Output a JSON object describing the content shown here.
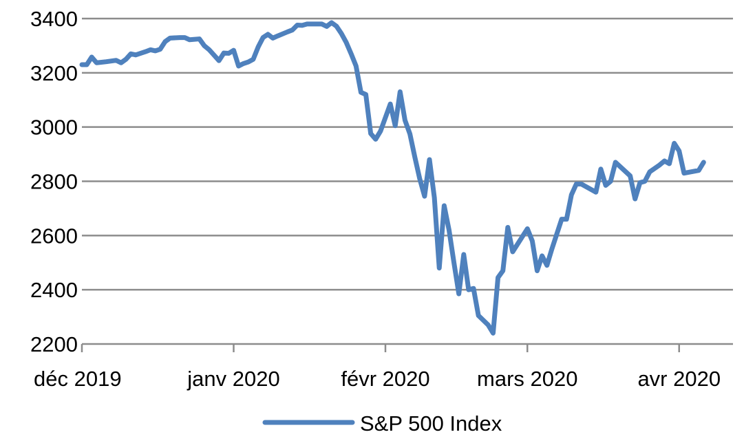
{
  "chart_data": {
    "type": "line",
    "title": "",
    "xlabel": "",
    "ylabel": "",
    "ylim": [
      2200,
      3400
    ],
    "yticks": [
      2200,
      2400,
      2600,
      2800,
      3000,
      3200,
      3400
    ],
    "ytick_labels": [
      "2200",
      "2400",
      "2600",
      "2800",
      "3000",
      "3200",
      "3400"
    ],
    "xlim": [
      "2019-12-01",
      "2020-04-12"
    ],
    "xticks": [
      {
        "date": "2019-12-01",
        "label": "déc 2019"
      },
      {
        "date": "2020-01-01",
        "label": "janv 2020"
      },
      {
        "date": "2020-02-01",
        "label": "févr 2020"
      },
      {
        "date": "2020-03-01",
        "label": "mars 2020"
      },
      {
        "date": "2020-04-01",
        "label": "avr 2020"
      }
    ],
    "grid": true,
    "legend_position": "bottom-center",
    "series": [
      {
        "name": "S&P 500 Index",
        "color": "#4f81bd",
        "points": [
          [
            "2019-12-01",
            3230
          ],
          [
            "2019-12-02",
            3230
          ],
          [
            "2019-12-03",
            3258
          ],
          [
            "2019-12-04",
            3237
          ],
          [
            "2019-12-06",
            3241
          ],
          [
            "2019-12-08",
            3246
          ],
          [
            "2019-12-09",
            3237
          ],
          [
            "2019-12-10",
            3250
          ],
          [
            "2019-12-11",
            3270
          ],
          [
            "2019-12-12",
            3266
          ],
          [
            "2019-12-14",
            3278
          ],
          [
            "2019-12-15",
            3285
          ],
          [
            "2019-12-16",
            3281
          ],
          [
            "2019-12-17",
            3287
          ],
          [
            "2019-12-18",
            3315
          ],
          [
            "2019-12-19",
            3328
          ],
          [
            "2019-12-21",
            3330
          ],
          [
            "2019-12-22",
            3330
          ],
          [
            "2019-12-23",
            3322
          ],
          [
            "2019-12-25",
            3325
          ],
          [
            "2019-12-26",
            3300
          ],
          [
            "2019-12-27",
            3285
          ],
          [
            "2019-12-28",
            3265
          ],
          [
            "2019-12-29",
            3245
          ],
          [
            "2019-12-30",
            3273
          ],
          [
            "2019-12-31",
            3272
          ],
          [
            "2020-01-01",
            3283
          ],
          [
            "2020-01-02",
            3225
          ],
          [
            "2020-01-03",
            3234
          ],
          [
            "2020-01-04",
            3240
          ],
          [
            "2020-01-05",
            3250
          ],
          [
            "2020-01-06",
            3295
          ],
          [
            "2020-01-07",
            3330
          ],
          [
            "2020-01-08",
            3342
          ],
          [
            "2020-01-09",
            3328
          ],
          [
            "2020-01-10",
            3336
          ],
          [
            "2020-01-12",
            3351
          ],
          [
            "2020-01-13",
            3358
          ],
          [
            "2020-01-14",
            3376
          ],
          [
            "2020-01-15",
            3375
          ],
          [
            "2020-01-16",
            3380
          ],
          [
            "2020-01-17",
            3380
          ],
          [
            "2020-01-19",
            3380
          ],
          [
            "2020-01-20",
            3371
          ],
          [
            "2020-01-21",
            3385
          ],
          [
            "2020-01-22",
            3372
          ],
          [
            "2020-01-23",
            3345
          ],
          [
            "2020-01-24",
            3312
          ],
          [
            "2020-01-25",
            3270
          ],
          [
            "2020-01-26",
            3225
          ],
          [
            "2020-01-27",
            3128
          ],
          [
            "2020-01-28",
            3120
          ],
          [
            "2020-01-29",
            2976
          ],
          [
            "2020-01-30",
            2955
          ],
          [
            "2020-01-31",
            2985
          ],
          [
            "2020-02-02",
            3085
          ],
          [
            "2020-02-03",
            3005
          ],
          [
            "2020-02-04",
            3130
          ],
          [
            "2020-02-05",
            3025
          ],
          [
            "2020-02-06",
            2975
          ],
          [
            "2020-02-07",
            2890
          ],
          [
            "2020-02-08",
            2810
          ],
          [
            "2020-02-09",
            2745
          ],
          [
            "2020-02-10",
            2880
          ],
          [
            "2020-02-11",
            2740
          ],
          [
            "2020-02-12",
            2480
          ],
          [
            "2020-02-13",
            2710
          ],
          [
            "2020-02-14",
            2620
          ],
          [
            "2020-02-15",
            2500
          ],
          [
            "2020-02-16",
            2385
          ],
          [
            "2020-02-17",
            2530
          ],
          [
            "2020-02-18",
            2400
          ],
          [
            "2020-02-19",
            2405
          ],
          [
            "2020-02-20",
            2305
          ],
          [
            "2020-02-22",
            2270
          ],
          [
            "2020-02-23",
            2240
          ],
          [
            "2020-02-24",
            2445
          ],
          [
            "2020-02-25",
            2470
          ],
          [
            "2020-02-26",
            2630
          ],
          [
            "2020-02-27",
            2540
          ],
          [
            "2020-03-01",
            2625
          ],
          [
            "2020-03-02",
            2580
          ],
          [
            "2020-03-03",
            2470
          ],
          [
            "2020-03-04",
            2525
          ],
          [
            "2020-03-05",
            2490
          ],
          [
            "2020-03-06",
            2550
          ],
          [
            "2020-03-07",
            2605
          ],
          [
            "2020-03-08",
            2660
          ],
          [
            "2020-03-09",
            2660
          ],
          [
            "2020-03-10",
            2750
          ],
          [
            "2020-03-11",
            2790
          ],
          [
            "2020-03-12",
            2790
          ],
          [
            "2020-03-15",
            2760
          ],
          [
            "2020-03-16",
            2845
          ],
          [
            "2020-03-17",
            2785
          ],
          [
            "2020-03-18",
            2800
          ],
          [
            "2020-03-19",
            2870
          ],
          [
            "2020-03-22",
            2820
          ],
          [
            "2020-03-23",
            2735
          ],
          [
            "2020-03-24",
            2795
          ],
          [
            "2020-03-25",
            2800
          ],
          [
            "2020-03-26",
            2835
          ],
          [
            "2020-03-28",
            2860
          ],
          [
            "2020-03-29",
            2875
          ],
          [
            "2020-03-30",
            2865
          ],
          [
            "2020-03-31",
            2940
          ],
          [
            "2020-04-01",
            2912
          ],
          [
            "2020-04-02",
            2830
          ],
          [
            "2020-04-05",
            2840
          ],
          [
            "2020-04-06",
            2870
          ]
        ]
      }
    ]
  }
}
